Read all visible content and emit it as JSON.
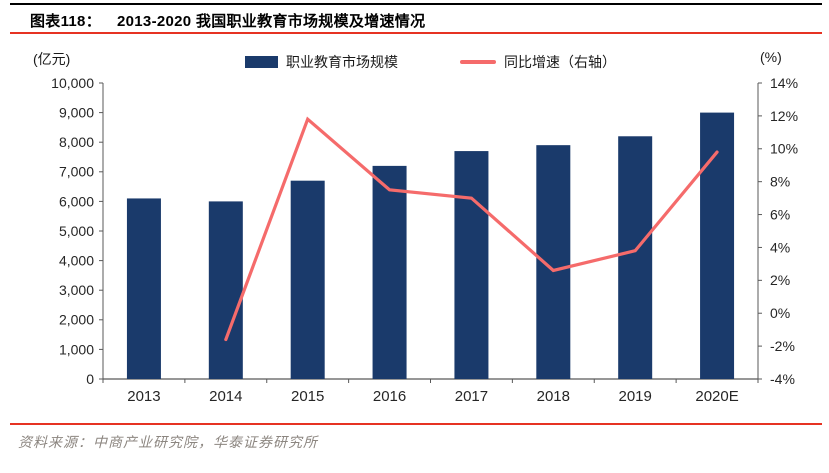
{
  "header": {
    "figure_label": "图表118：",
    "title": "2013-2020 我国职业教育市场规模及增速情况"
  },
  "legend": {
    "items": [
      {
        "label": "职业教育市场规模",
        "type": "bar"
      },
      {
        "label": "同比增速（右轴）",
        "type": "line"
      }
    ]
  },
  "axes": {
    "left_unit": "(亿元)",
    "right_unit": "(%)"
  },
  "footer": {
    "source": "资料来源：中商产业研究院，华泰证券研究所"
  },
  "colors": {
    "bar_navy": "#1A3A6B",
    "line_coral": "#F56B6B",
    "rule_red": "#E63323",
    "source_gray": "#8C8680",
    "axis_gray": "#595959"
  },
  "chart_data": {
    "type": "bar+line combo",
    "categories": [
      "2013",
      "2014",
      "2015",
      "2016",
      "2017",
      "2018",
      "2019",
      "2020E"
    ],
    "series": [
      {
        "name": "职业教育市场规模",
        "type": "bar",
        "axis": "left",
        "values": [
          6100,
          6000,
          6700,
          7200,
          7700,
          7900,
          8200,
          9000
        ]
      },
      {
        "name": "同比增速（右轴）",
        "type": "line",
        "axis": "right",
        "values": [
          null,
          -1.6,
          11.8,
          7.5,
          7.0,
          2.6,
          3.8,
          9.8
        ]
      }
    ],
    "left_axis": {
      "unit": "(亿元)",
      "min": 0,
      "max": 10000,
      "step": 1000
    },
    "right_axis": {
      "unit": "(%)",
      "min": -4,
      "max": 14,
      "step": 2
    },
    "grid": false,
    "legend_position": "top-center"
  }
}
